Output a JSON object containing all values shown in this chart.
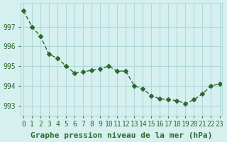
{
  "x": [
    0,
    1,
    2,
    3,
    4,
    5,
    6,
    7,
    8,
    9,
    10,
    11,
    12,
    13,
    14,
    15,
    16,
    17,
    18,
    19,
    20,
    21,
    22,
    23
  ],
  "y": [
    997.8,
    997.0,
    996.5,
    995.6,
    995.4,
    995.0,
    994.65,
    994.7,
    994.8,
    994.85,
    995.0,
    994.75,
    994.75,
    994.0,
    993.85,
    993.5,
    993.35,
    993.3,
    993.25,
    993.1,
    993.3,
    993.6,
    994.0,
    994.1
  ],
  "line_color": "#2d6a2d",
  "marker": "D",
  "marker_size": 3,
  "bg_color": "#d6f0f0",
  "grid_color": "#b0d8d8",
  "xlabel": "Graphe pression niveau de la mer (hPa)",
  "xlabel_fontsize": 8,
  "tick_fontsize": 7,
  "yticks": [
    993,
    994,
    995,
    996,
    997
  ],
  "xticks": [
    0,
    1,
    2,
    3,
    4,
    5,
    6,
    7,
    8,
    9,
    10,
    11,
    12,
    13,
    14,
    15,
    16,
    17,
    18,
    19,
    20,
    21,
    22,
    23
  ],
  "ylim": [
    992.5,
    998.2
  ],
  "xlim": [
    -0.3,
    23.3
  ]
}
